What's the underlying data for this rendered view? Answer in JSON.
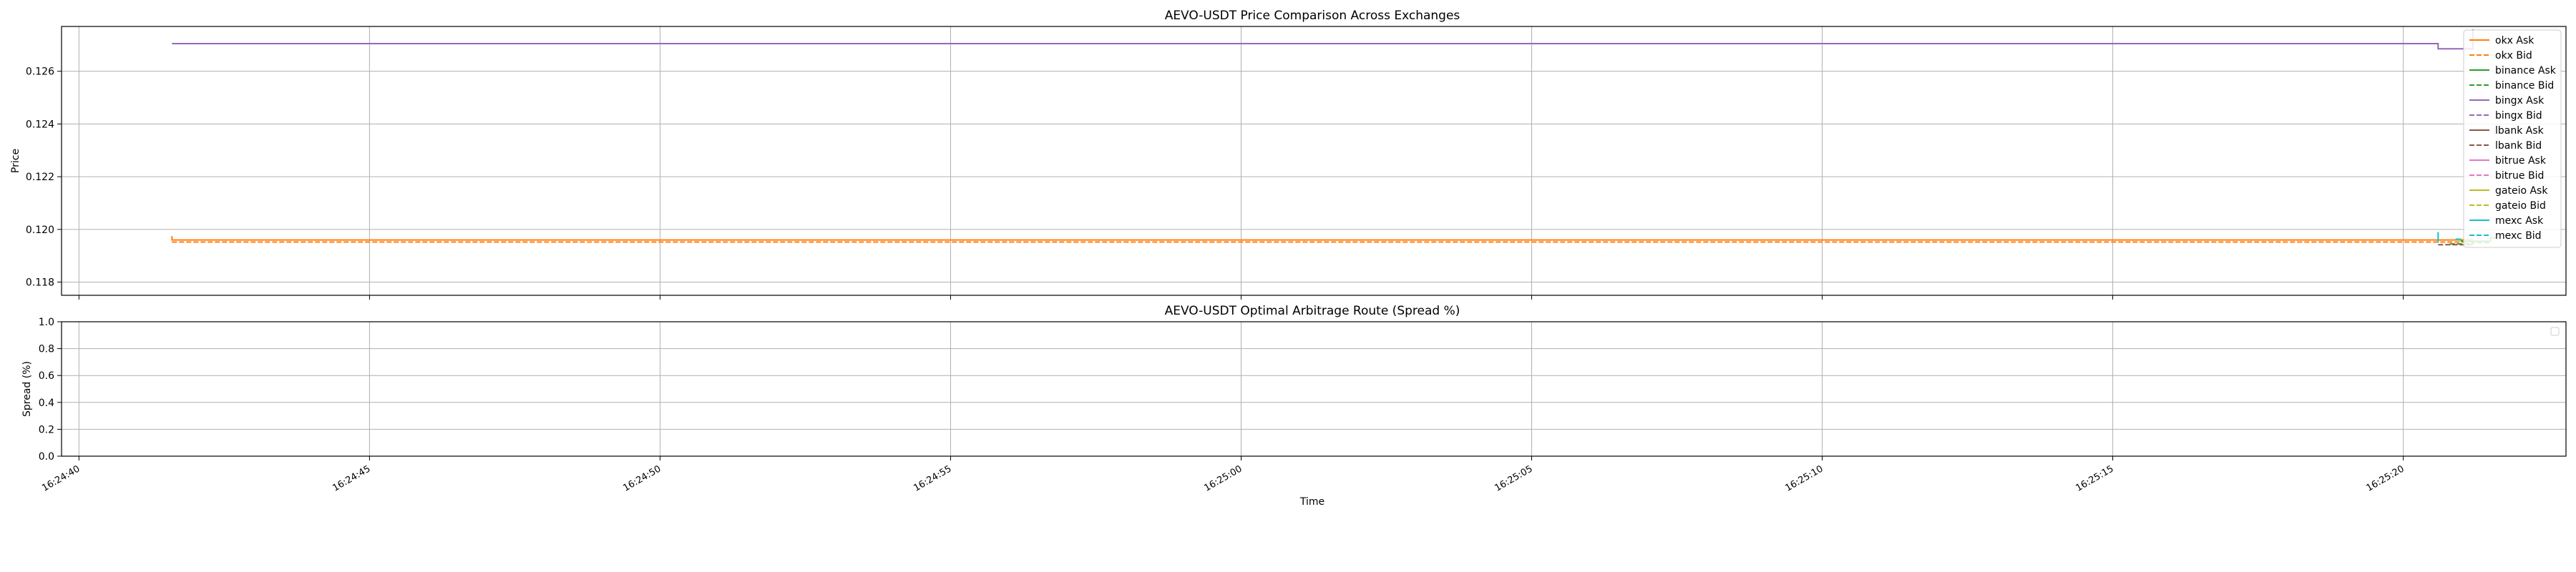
{
  "figure": {
    "background": "#ffffff",
    "grid_color": "#b0b0b0",
    "axis_color": "#000000"
  },
  "chart_data": [
    {
      "type": "line",
      "title": "AEVO-USDT Price Comparison Across Exchanges",
      "xlabel": "",
      "ylabel": "Price",
      "x_axis": "time",
      "xlim": [
        "16:24:39.7",
        "16:25:22.8"
      ],
      "ylim": [
        0.1175,
        0.1277
      ],
      "y_ticks": [
        "0.118",
        "0.120",
        "0.122",
        "0.124",
        "0.126"
      ],
      "y_tick_values": [
        0.118,
        0.12,
        0.122,
        0.124,
        0.126
      ],
      "grid": true,
      "legend_position": "top-right",
      "series": [
        {
          "name": "okx Ask",
          "color": "#ff7f0e",
          "dash": "solid",
          "points": [
            [
              "16:24:41.6",
              0.11975
            ],
            [
              "16:24:41.6",
              0.1196
            ],
            [
              "16:25:20.6",
              0.1196
            ],
            [
              "16:25:21.2",
              0.1196
            ]
          ]
        },
        {
          "name": "okx Bid",
          "color": "#ff7f0e",
          "dash": "dashed",
          "points": [
            [
              "16:24:41.6",
              0.11952
            ],
            [
              "16:25:21.2",
              0.11952
            ]
          ]
        },
        {
          "name": "binance Ask",
          "color": "#2ca02c",
          "dash": "solid",
          "points": [
            [
              "16:25:21.0",
              0.1196
            ],
            [
              "16:25:21.0",
              0.11955
            ],
            [
              "16:25:21.5",
              0.11955
            ],
            [
              "16:25:21.5",
              0.11968
            ],
            [
              "16:25:21.6",
              0.11968
            ]
          ]
        },
        {
          "name": "binance Bid",
          "color": "#2ca02c",
          "dash": "dashed",
          "points": [
            [
              "16:25:20.8",
              0.11945
            ],
            [
              "16:25:21.2",
              0.11945
            ],
            [
              "16:25:21.2",
              0.1195
            ],
            [
              "16:25:21.5",
              0.1195
            ]
          ]
        },
        {
          "name": "bingx Ask",
          "color": "#9467bd",
          "dash": "solid",
          "points": [
            [
              "16:24:41.6",
              0.12705
            ],
            [
              "16:25:20.6",
              0.12705
            ],
            [
              "16:25:20.6",
              0.12685
            ],
            [
              "16:25:21.2",
              0.12685
            ],
            [
              "16:25:21.2",
              0.1276
            ]
          ]
        },
        {
          "name": "bingx Bid",
          "color": "#9467bd",
          "dash": "dashed",
          "points": []
        },
        {
          "name": "lbank Ask",
          "color": "#8c564b",
          "dash": "solid",
          "points": []
        },
        {
          "name": "lbank Bid",
          "color": "#8c564b",
          "dash": "dashed",
          "points": [
            [
              "16:25:20.6",
              0.11942
            ],
            [
              "16:25:21.2",
              0.11942
            ]
          ]
        },
        {
          "name": "bitrue Ask",
          "color": "#e377c2",
          "dash": "solid",
          "points": []
        },
        {
          "name": "bitrue Bid",
          "color": "#e377c2",
          "dash": "dashed",
          "points": []
        },
        {
          "name": "gateio Ask",
          "color": "#bcbd22",
          "dash": "solid",
          "points": [
            [
              "16:25:20.9",
              0.11962
            ],
            [
              "16:25:21.2",
              0.11962
            ]
          ]
        },
        {
          "name": "gateio Bid",
          "color": "#bcbd22",
          "dash": "dashed",
          "points": []
        },
        {
          "name": "mexc Ask",
          "color": "#17becf",
          "dash": "solid",
          "points": [
            [
              "16:25:20.6",
              0.1199
            ],
            [
              "16:25:20.6",
              0.1195
            ]
          ]
        },
        {
          "name": "mexc Bid",
          "color": "#17becf",
          "dash": "dashed",
          "points": [
            [
              "16:25:20.9",
              0.11963
            ],
            [
              "16:25:21.0",
              0.11963
            ]
          ]
        }
      ]
    },
    {
      "type": "line",
      "title": "AEVO-USDT Optimal Arbitrage Route (Spread %)",
      "xlabel": "Time",
      "ylabel": "Spread (%)",
      "x_axis": "time",
      "xlim": [
        "16:24:39.7",
        "16:25:22.8"
      ],
      "ylim": [
        0.0,
        1.0
      ],
      "y_ticks": [
        "0.0",
        "0.2",
        "0.4",
        "0.6",
        "0.8",
        "1.0"
      ],
      "y_tick_values": [
        0.0,
        0.2,
        0.4,
        0.6,
        0.8,
        1.0
      ],
      "x_ticks": [
        "16:24:40",
        "16:24:45",
        "16:24:50",
        "16:24:55",
        "16:25:00",
        "16:25:05",
        "16:25:10",
        "16:25:15",
        "16:25:20"
      ],
      "grid": true,
      "legend_position": "top-right",
      "series": []
    }
  ]
}
